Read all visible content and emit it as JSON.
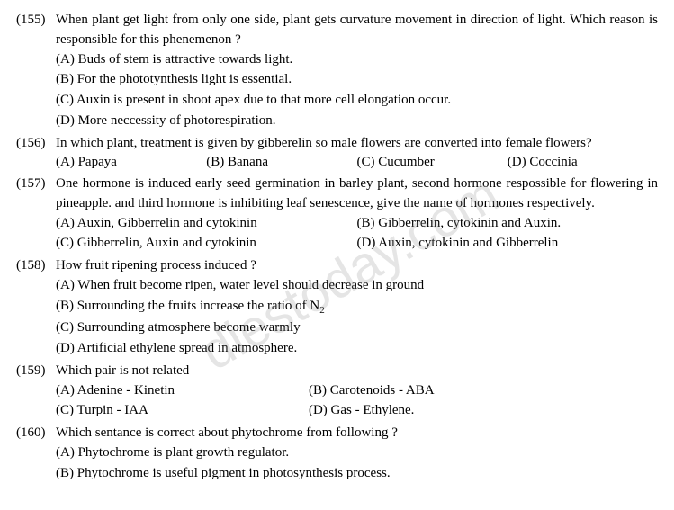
{
  "watermark": "diestoday.com",
  "questions": [
    {
      "num": "(155)",
      "text": "When plant get light from only one side, plant gets curvature movement in direction of light. Which reason is responsible for this phenemenon ?",
      "layout": "vertical",
      "opts": [
        "(A) Buds of stem is attractive towards light.",
        "(B) For the phototynthesis light is essential.",
        "(C) Auxin is present in shoot apex due to that more cell elongation occur.",
        "(D) More neccessity of photorespiration."
      ]
    },
    {
      "num": "(156)",
      "text": "In which plant, treatment is given by gibberelin so male flowers are converted into female flowers?",
      "layout": "4col",
      "opts": [
        "(A) Papaya",
        "(B) Banana",
        "(C) Cucumber",
        "(D) Coccinia"
      ]
    },
    {
      "num": "(157)",
      "text": "One hormone is induced early seed germination in barley plant, second hormone respossible for flowering in pineapple. and third hormone is inhibiting leaf senescence, give the name of hormones respectively.",
      "layout": "2col",
      "opts": [
        "(A) Auxin, Gibberrelin and cytokinin",
        "(B) Gibberrelin, cytokinin and Auxin.",
        "(C) Gibberrelin, Auxin and cytokinin",
        "(D) Auxin, cytokinin and Gibberrelin"
      ]
    },
    {
      "num": "(158)",
      "text": "How fruit ripening process induced ?",
      "layout": "vertical",
      "opts": [
        "(A) When fruit become ripen, water level should decrease in ground",
        "(B) Surrounding the fruits increase the ratio of N",
        "(C) Surrounding atmosphere become warmly",
        "(D) Artificial ethylene spread in atmosphere."
      ],
      "sub_b": "2"
    },
    {
      "num": "(159)",
      "text": "Which pair is not related",
      "layout": "2col-narrow",
      "opts": [
        "(A) Adenine - Kinetin",
        "(B) Carotenoids - ABA",
        "(C) Turpin - IAA",
        "(D) Gas - Ethylene."
      ]
    },
    {
      "num": "(160)",
      "text": "Which sentance is correct about phytochrome from following ?",
      "layout": "vertical",
      "opts": [
        "(A) Phytochrome is plant growth regulator.",
        "(B) Phytochrome is useful pigment in photosynthesis process."
      ]
    }
  ]
}
